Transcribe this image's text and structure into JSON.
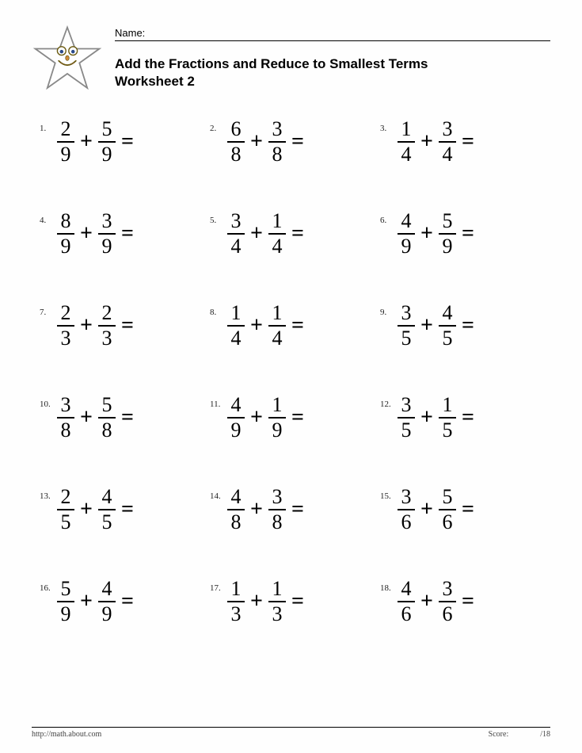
{
  "name_label": "Name:",
  "title_line1": "Add the Fractions and Reduce to Smallest Terms",
  "title_line2": "Worksheet  2",
  "footer_url": "http://math.about.com",
  "footer_score": "Score:",
  "footer_right": "/18",
  "star": {
    "outline_color": "#888888",
    "face_fill": "#f5e37a",
    "face_stroke": "#6a5a10"
  },
  "problems": [
    {
      "num": "1.",
      "a": {
        "n": "2",
        "d": "9"
      },
      "b": {
        "n": "5",
        "d": "9"
      }
    },
    {
      "num": "2.",
      "a": {
        "n": "6",
        "d": "8"
      },
      "b": {
        "n": "3",
        "d": "8"
      }
    },
    {
      "num": "3.",
      "a": {
        "n": "1",
        "d": "4"
      },
      "b": {
        "n": "3",
        "d": "4"
      }
    },
    {
      "num": "4.",
      "a": {
        "n": "8",
        "d": "9"
      },
      "b": {
        "n": "3",
        "d": "9"
      }
    },
    {
      "num": "5.",
      "a": {
        "n": "3",
        "d": "4"
      },
      "b": {
        "n": "1",
        "d": "4"
      }
    },
    {
      "num": "6.",
      "a": {
        "n": "4",
        "d": "9"
      },
      "b": {
        "n": "5",
        "d": "9"
      }
    },
    {
      "num": "7.",
      "a": {
        "n": "2",
        "d": "3"
      },
      "b": {
        "n": "2",
        "d": "3"
      }
    },
    {
      "num": "8.",
      "a": {
        "n": "1",
        "d": "4"
      },
      "b": {
        "n": "1",
        "d": "4"
      }
    },
    {
      "num": "9.",
      "a": {
        "n": "3",
        "d": "5"
      },
      "b": {
        "n": "4",
        "d": "5"
      }
    },
    {
      "num": "10.",
      "a": {
        "n": "3",
        "d": "8"
      },
      "b": {
        "n": "5",
        "d": "8"
      }
    },
    {
      "num": "11.",
      "a": {
        "n": "4",
        "d": "9"
      },
      "b": {
        "n": "1",
        "d": "9"
      }
    },
    {
      "num": "12.",
      "a": {
        "n": "3",
        "d": "5"
      },
      "b": {
        "n": "1",
        "d": "5"
      }
    },
    {
      "num": "13.",
      "a": {
        "n": "2",
        "d": "5"
      },
      "b": {
        "n": "4",
        "d": "5"
      }
    },
    {
      "num": "14.",
      "a": {
        "n": "4",
        "d": "8"
      },
      "b": {
        "n": "3",
        "d": "8"
      }
    },
    {
      "num": "15.",
      "a": {
        "n": "3",
        "d": "6"
      },
      "b": {
        "n": "5",
        "d": "6"
      }
    },
    {
      "num": "16.",
      "a": {
        "n": "5",
        "d": "9"
      },
      "b": {
        "n": "4",
        "d": "9"
      }
    },
    {
      "num": "17.",
      "a": {
        "n": "1",
        "d": "3"
      },
      "b": {
        "n": "1",
        "d": "3"
      }
    },
    {
      "num": "18.",
      "a": {
        "n": "4",
        "d": "6"
      },
      "b": {
        "n": "3",
        "d": "6"
      }
    }
  ]
}
